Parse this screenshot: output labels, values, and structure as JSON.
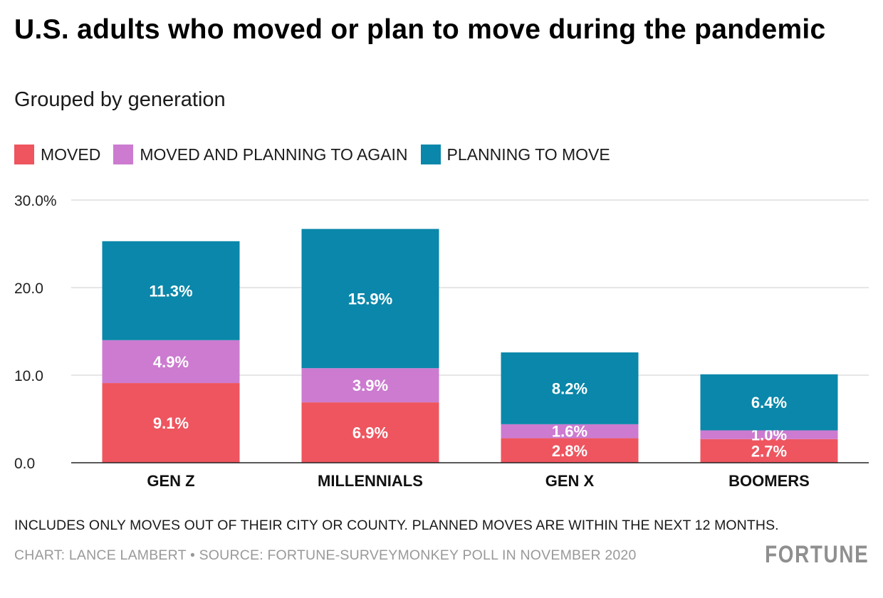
{
  "chart_data": {
    "type": "bar",
    "stacked": true,
    "title": "U.S. adults who moved or plan to move during the pandemic",
    "subtitle": "Grouped by generation",
    "categories": [
      "GEN Z",
      "MILLENNIALS",
      "GEN X",
      "BOOMERS"
    ],
    "series": [
      {
        "name": "MOVED",
        "color": "#ee555f",
        "values": [
          9.1,
          6.9,
          2.8,
          2.7
        ],
        "labels": [
          "9.1%",
          "6.9%",
          "2.8%",
          "2.7%"
        ]
      },
      {
        "name": "MOVED AND PLANNING TO AGAIN",
        "color": "#cc7bd0",
        "values": [
          4.9,
          3.9,
          1.6,
          1.0
        ],
        "labels": [
          "4.9%",
          "3.9%",
          "1.6%",
          "1.0%"
        ]
      },
      {
        "name": "PLANNING TO MOVE",
        "color": "#0a87aa",
        "values": [
          11.3,
          15.9,
          8.2,
          6.4
        ],
        "labels": [
          "11.3%",
          "15.9%",
          "8.2%",
          "6.4%"
        ]
      }
    ],
    "ylim": [
      0,
      30
    ],
    "yticks": [
      0,
      10,
      20,
      30
    ],
    "ytick_labels": [
      "0.0",
      "10.0",
      "20.0",
      "30.0%"
    ],
    "grid": true,
    "legend": "top-left",
    "xlabel": "",
    "ylabel": ""
  },
  "footer": {
    "note": "INCLUDES ONLY MOVES OUT OF THEIR CITY OR COUNTY. PLANNED MOVES ARE WITHIN THE NEXT 12 MONTHS.",
    "credit": "CHART: LANCE LAMBERT • SOURCE: FORTUNE-SURVEYMONKEY POLL IN NOVEMBER 2020",
    "logo": "FORTUNE"
  }
}
